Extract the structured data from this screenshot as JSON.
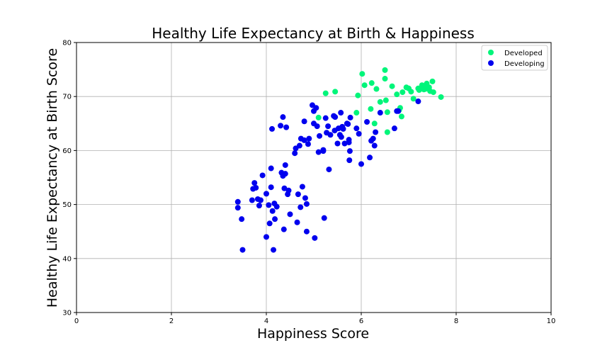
{
  "chart_data": {
    "type": "scatter",
    "title": "Healthy Life Expectancy at Birth & Happiness",
    "xlabel": "Happiness Score",
    "ylabel": "Healthy Life Expectancy at Birth Score",
    "xlim": [
      0,
      10
    ],
    "ylim": [
      30,
      80
    ],
    "xticks": [
      0,
      2,
      4,
      6,
      8,
      10
    ],
    "yticks": [
      30,
      40,
      50,
      60,
      70,
      80
    ],
    "grid": true,
    "legend_position": "top-right",
    "series": [
      {
        "name": "Developed",
        "color": "#00f57a",
        "points": [
          [
            5.25,
            70.6
          ],
          [
            5.45,
            70.9
          ],
          [
            5.1,
            66.1
          ],
          [
            5.9,
            67.0
          ],
          [
            5.93,
            70.2
          ],
          [
            6.02,
            74.2
          ],
          [
            6.07,
            72.1
          ],
          [
            6.2,
            67.7
          ],
          [
            6.22,
            72.5
          ],
          [
            6.28,
            65.0
          ],
          [
            6.32,
            71.4
          ],
          [
            6.4,
            69.0
          ],
          [
            6.5,
            74.9
          ],
          [
            6.5,
            73.3
          ],
          [
            6.52,
            69.3
          ],
          [
            6.55,
            63.4
          ],
          [
            6.55,
            67.1
          ],
          [
            6.65,
            71.9
          ],
          [
            6.75,
            70.4
          ],
          [
            6.8,
            67.5
          ],
          [
            6.82,
            67.9
          ],
          [
            6.85,
            66.3
          ],
          [
            6.87,
            70.8
          ],
          [
            6.95,
            71.7
          ],
          [
            7.0,
            71.5
          ],
          [
            7.05,
            70.9
          ],
          [
            7.1,
            69.6
          ],
          [
            7.2,
            71.5
          ],
          [
            7.22,
            71.2
          ],
          [
            7.28,
            72.1
          ],
          [
            7.3,
            71.8
          ],
          [
            7.32,
            71.3
          ],
          [
            7.35,
            71.4
          ],
          [
            7.38,
            72.4
          ],
          [
            7.4,
            71.5
          ],
          [
            7.43,
            71.7
          ],
          [
            7.45,
            71.0
          ],
          [
            7.5,
            72.8
          ],
          [
            7.52,
            70.8
          ],
          [
            7.68,
            69.9
          ]
        ]
      },
      {
        "name": "Developing",
        "color": "#0000ee",
        "points": [
          [
            3.4,
            50.5
          ],
          [
            3.4,
            49.4
          ],
          [
            3.48,
            47.3
          ],
          [
            3.5,
            41.6
          ],
          [
            3.7,
            50.8
          ],
          [
            3.72,
            52.9
          ],
          [
            3.75,
            54.0
          ],
          [
            3.78,
            53.1
          ],
          [
            3.82,
            51.0
          ],
          [
            3.85,
            49.8
          ],
          [
            3.88,
            50.8
          ],
          [
            3.92,
            55.4
          ],
          [
            4.0,
            52.0
          ],
          [
            4.0,
            44.0
          ],
          [
            4.05,
            49.9
          ],
          [
            4.07,
            46.5
          ],
          [
            4.1,
            56.7
          ],
          [
            4.1,
            53.2
          ],
          [
            4.12,
            64.0
          ],
          [
            4.13,
            48.8
          ],
          [
            4.15,
            41.6
          ],
          [
            4.17,
            50.2
          ],
          [
            4.18,
            47.3
          ],
          [
            4.22,
            49.6
          ],
          [
            4.3,
            64.6
          ],
          [
            4.32,
            55.9
          ],
          [
            4.35,
            55.3
          ],
          [
            4.35,
            66.2
          ],
          [
            4.37,
            45.4
          ],
          [
            4.38,
            53.0
          ],
          [
            4.4,
            57.3
          ],
          [
            4.4,
            55.7
          ],
          [
            4.42,
            64.3
          ],
          [
            4.45,
            51.9
          ],
          [
            4.47,
            52.6
          ],
          [
            4.5,
            48.2
          ],
          [
            4.6,
            59.5
          ],
          [
            4.62,
            60.4
          ],
          [
            4.65,
            46.7
          ],
          [
            4.67,
            51.9
          ],
          [
            4.7,
            60.9
          ],
          [
            4.72,
            49.5
          ],
          [
            4.73,
            62.2
          ],
          [
            4.76,
            53.3
          ],
          [
            4.8,
            65.4
          ],
          [
            4.8,
            61.9
          ],
          [
            4.82,
            51.2
          ],
          [
            4.85,
            50.1
          ],
          [
            4.85,
            45.0
          ],
          [
            4.88,
            61.2
          ],
          [
            4.9,
            62.2
          ],
          [
            4.97,
            68.4
          ],
          [
            5.0,
            67.3
          ],
          [
            5.0,
            65.0
          ],
          [
            5.02,
            43.8
          ],
          [
            5.05,
            67.9
          ],
          [
            5.07,
            64.5
          ],
          [
            5.1,
            59.7
          ],
          [
            5.12,
            62.7
          ],
          [
            5.2,
            60.1
          ],
          [
            5.2,
            59.9
          ],
          [
            5.22,
            47.5
          ],
          [
            5.25,
            66.0
          ],
          [
            5.27,
            63.3
          ],
          [
            5.3,
            64.5
          ],
          [
            5.32,
            56.5
          ],
          [
            5.35,
            62.9
          ],
          [
            5.42,
            66.4
          ],
          [
            5.44,
            63.7
          ],
          [
            5.45,
            66.2
          ],
          [
            5.5,
            61.3
          ],
          [
            5.52,
            64.1
          ],
          [
            5.55,
            62.9
          ],
          [
            5.57,
            67.0
          ],
          [
            5.58,
            62.5
          ],
          [
            5.6,
            64.4
          ],
          [
            5.62,
            64.0
          ],
          [
            5.65,
            61.3
          ],
          [
            5.7,
            65.0
          ],
          [
            5.72,
            64.9
          ],
          [
            5.74,
            62.0
          ],
          [
            5.74,
            61.5
          ],
          [
            5.75,
            58.2
          ],
          [
            5.76,
            59.9
          ],
          [
            5.77,
            66.1
          ],
          [
            5.9,
            64.1
          ],
          [
            5.95,
            63.1
          ],
          [
            6.0,
            57.5
          ],
          [
            6.12,
            65.3
          ],
          [
            6.18,
            58.7
          ],
          [
            6.21,
            61.8
          ],
          [
            6.25,
            62.2
          ],
          [
            6.28,
            60.9
          ],
          [
            6.3,
            63.4
          ],
          [
            6.4,
            67.0
          ],
          [
            6.7,
            64.1
          ],
          [
            6.75,
            67.3
          ],
          [
            6.78,
            67.3
          ],
          [
            7.2,
            69.1
          ]
        ]
      }
    ]
  }
}
